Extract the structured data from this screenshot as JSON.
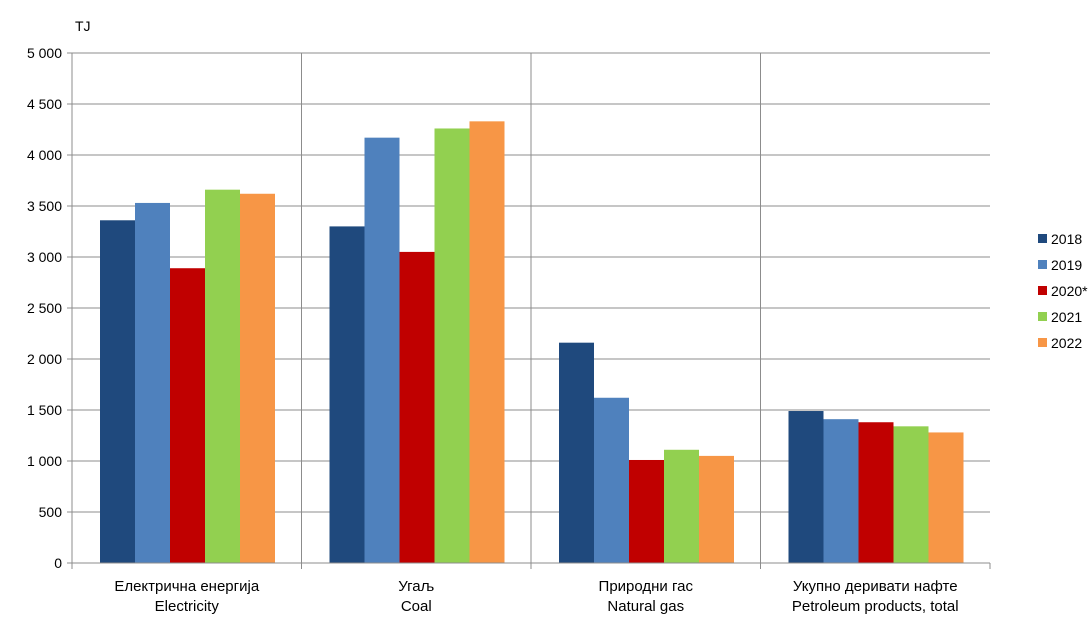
{
  "chart_data": {
    "type": "bar",
    "ylabel": "TJ",
    "ylim": [
      0,
      5000
    ],
    "yticks": [
      0,
      500,
      1000,
      1500,
      2000,
      2500,
      3000,
      3500,
      4000,
      4500,
      5000
    ],
    "ytick_labels": [
      "0",
      "500",
      "1 000",
      "1 500",
      "2 000",
      "2 500",
      "3 000",
      "3 500",
      "4 000",
      "4 500",
      "5 000"
    ],
    "categories": [
      [
        "Електрична енергија",
        "Electricity"
      ],
      [
        "Угаљ",
        "Coal"
      ],
      [
        "Природни гас",
        "Natural gas"
      ],
      [
        "Укупно деривати нафте",
        "Petroleum products, total"
      ]
    ],
    "series": [
      {
        "name": "2018",
        "color": "#1f497d",
        "values": [
          3360,
          3300,
          2160,
          1490
        ]
      },
      {
        "name": "2019",
        "color": "#4f81bd",
        "values": [
          3530,
          4170,
          1620,
          1410
        ]
      },
      {
        "name": "2020*",
        "color": "#c00000",
        "values": [
          2890,
          3050,
          1010,
          1380
        ]
      },
      {
        "name": "2021",
        "color": "#92d050",
        "values": [
          3660,
          4260,
          1110,
          1340
        ]
      },
      {
        "name": "2022",
        "color": "#f79646",
        "values": [
          3620,
          4330,
          1050,
          1280
        ]
      }
    ],
    "grid": true,
    "legend_position": "right"
  }
}
